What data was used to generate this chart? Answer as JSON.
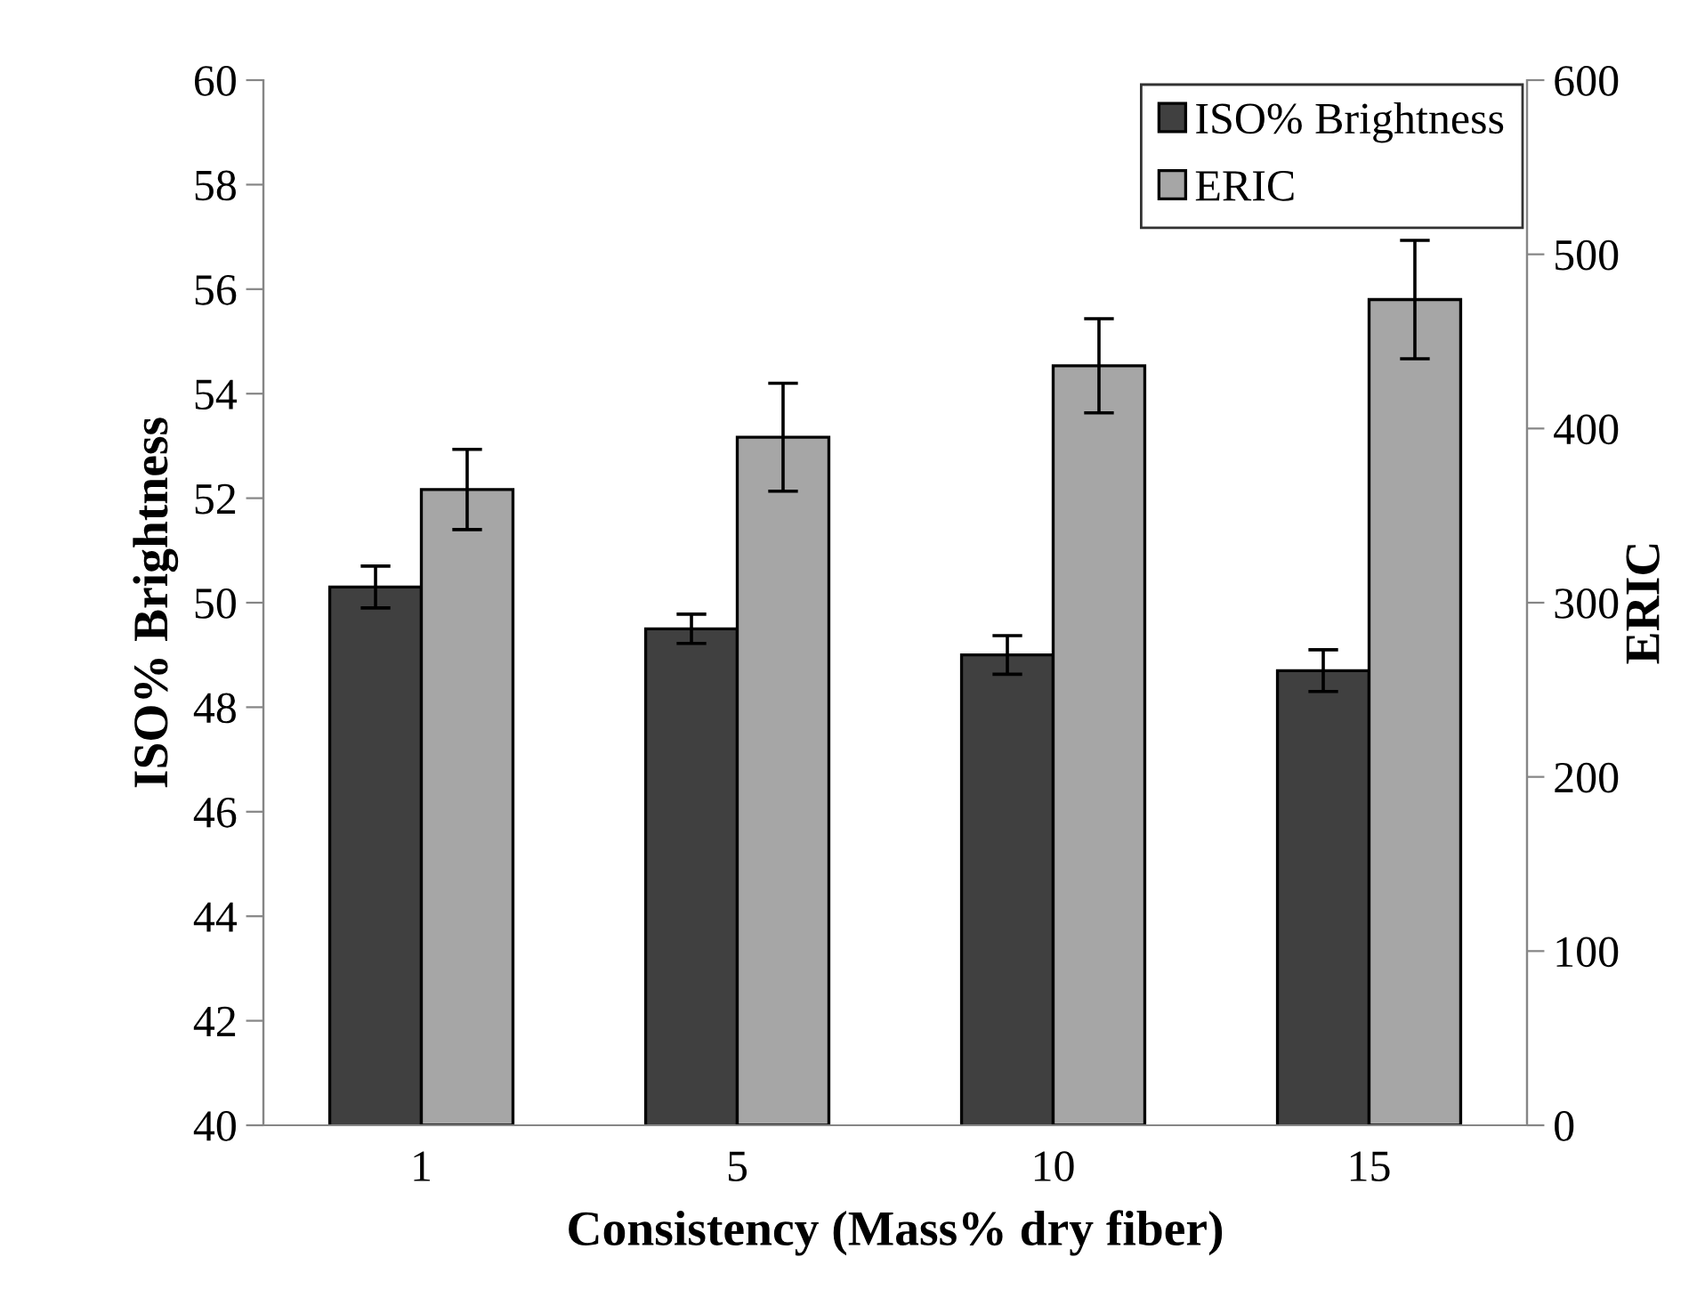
{
  "chart_data": {
    "type": "bar",
    "xlabel": "Consistency (Mass% dry fiber)",
    "ylabel": "ISO% Brightness",
    "y2label": "ERIC",
    "categories": [
      "1",
      "5",
      "10",
      "15"
    ],
    "series": [
      {
        "name": "ISO% Brightness",
        "color": "#404040",
        "values": [
          50.3,
          49.5,
          49.0,
          48.7
        ],
        "errors": [
          0.4,
          0.28,
          0.37,
          0.4
        ]
      },
      {
        "name": "ERIC",
        "color": "#a6a6a6",
        "axis": "y2",
        "values": [
          365,
          395,
          436,
          474
        ],
        "errors": [
          23,
          31,
          27,
          34
        ]
      }
    ],
    "ylim": [
      40,
      60
    ],
    "yticks": [
      40,
      42,
      44,
      46,
      48,
      50,
      52,
      54,
      56,
      58,
      60
    ],
    "y2lim": [
      0,
      600
    ],
    "y2ticks": [
      0,
      100,
      200,
      300,
      400,
      500,
      600
    ],
    "legend": "top right",
    "grid": false
  }
}
